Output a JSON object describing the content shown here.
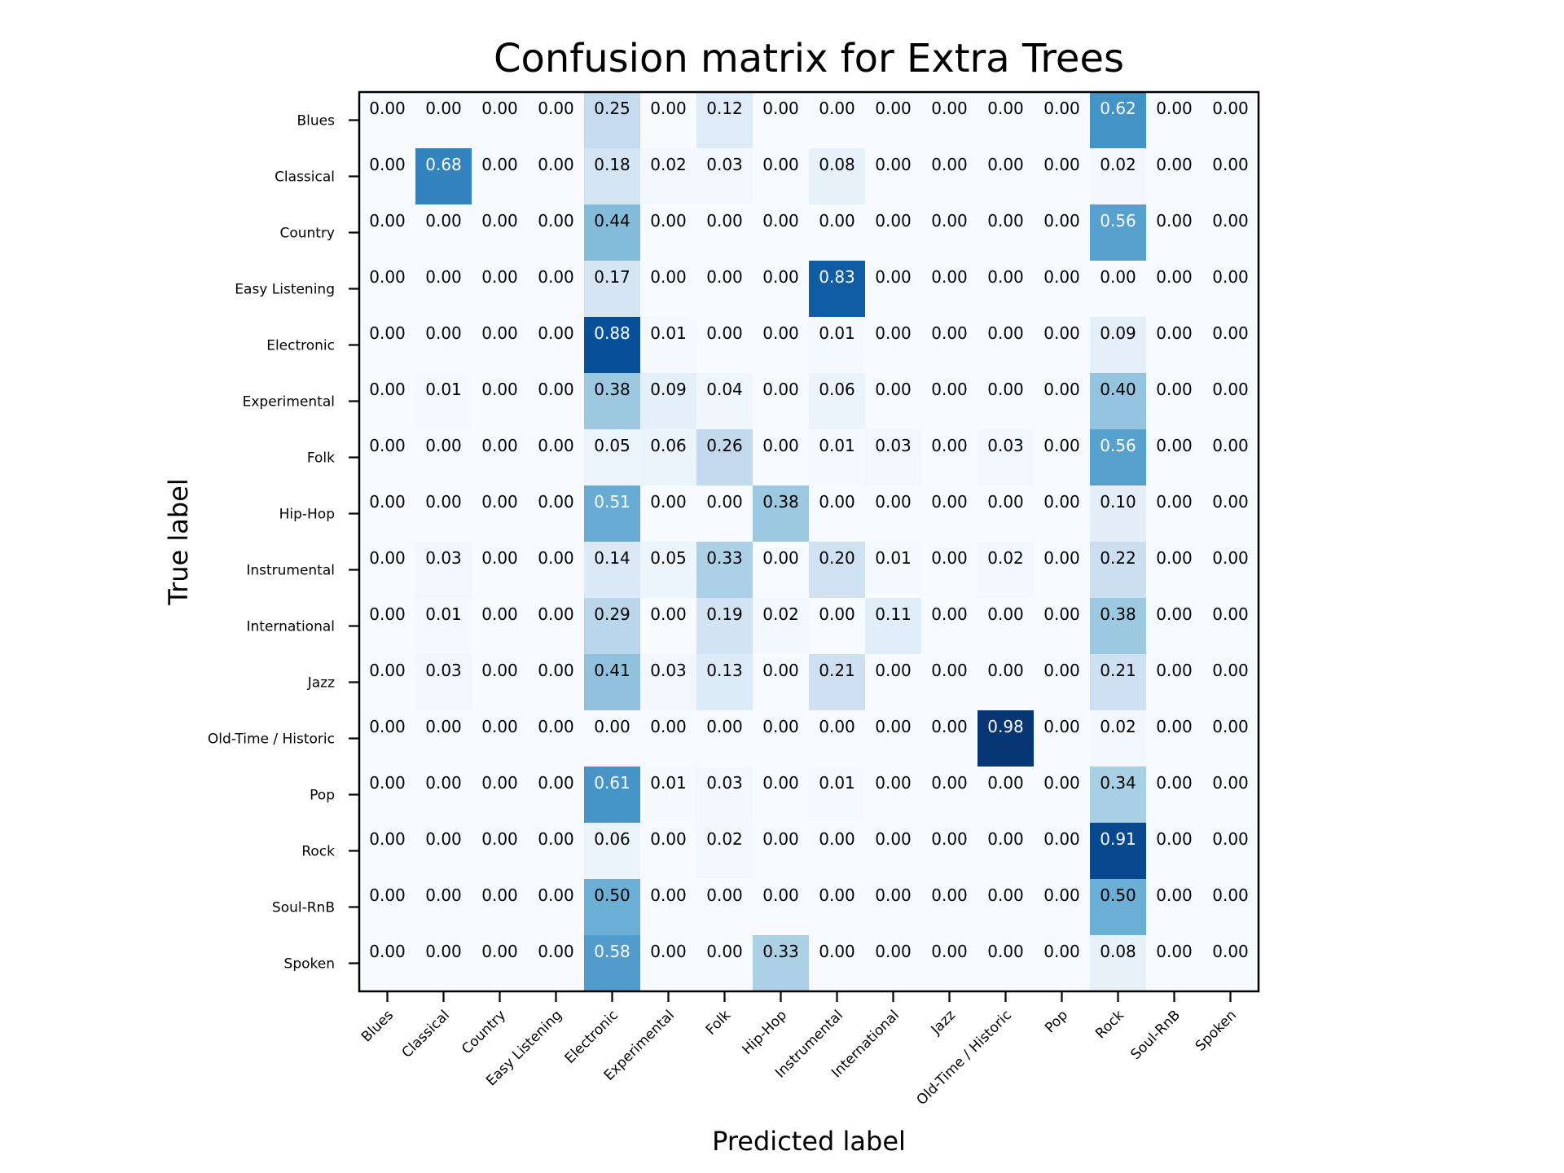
{
  "chart_data": {
    "type": "heatmap",
    "title": "Confusion matrix for Extra Trees",
    "xlabel": "Predicted label",
    "ylabel": "True label",
    "colormap": "Blues",
    "vmin": 0,
    "vmax": 1,
    "grid": false,
    "legend": "none",
    "x_categories": [
      "Blues",
      "Classical",
      "Country",
      "Easy Listening",
      "Electronic",
      "Experimental",
      "Folk",
      "Hip-Hop",
      "Instrumental",
      "International",
      "Jazz",
      "Old-Time / Historic",
      "Pop",
      "Rock",
      "Soul-RnB",
      "Spoken"
    ],
    "y_categories": [
      "Blues",
      "Classical",
      "Country",
      "Easy Listening",
      "Electronic",
      "Experimental",
      "Folk",
      "Hip-Hop",
      "Instrumental",
      "International",
      "Jazz",
      "Old-Time / Historic",
      "Pop",
      "Rock",
      "Soul-RnB",
      "Spoken"
    ],
    "values": [
      [
        0.0,
        0.0,
        0.0,
        0.0,
        0.25,
        0.0,
        0.12,
        0.0,
        0.0,
        0.0,
        0.0,
        0.0,
        0.0,
        0.62,
        0.0,
        0.0
      ],
      [
        0.0,
        0.68,
        0.0,
        0.0,
        0.18,
        0.02,
        0.03,
        0.0,
        0.08,
        0.0,
        0.0,
        0.0,
        0.0,
        0.02,
        0.0,
        0.0
      ],
      [
        0.0,
        0.0,
        0.0,
        0.0,
        0.44,
        0.0,
        0.0,
        0.0,
        0.0,
        0.0,
        0.0,
        0.0,
        0.0,
        0.56,
        0.0,
        0.0
      ],
      [
        0.0,
        0.0,
        0.0,
        0.0,
        0.17,
        0.0,
        0.0,
        0.0,
        0.83,
        0.0,
        0.0,
        0.0,
        0.0,
        0.0,
        0.0,
        0.0
      ],
      [
        0.0,
        0.0,
        0.0,
        0.0,
        0.88,
        0.01,
        0.0,
        0.0,
        0.01,
        0.0,
        0.0,
        0.0,
        0.0,
        0.09,
        0.0,
        0.0
      ],
      [
        0.0,
        0.01,
        0.0,
        0.0,
        0.38,
        0.09,
        0.04,
        0.0,
        0.06,
        0.0,
        0.0,
        0.0,
        0.0,
        0.4,
        0.0,
        0.0
      ],
      [
        0.0,
        0.0,
        0.0,
        0.0,
        0.05,
        0.06,
        0.26,
        0.0,
        0.01,
        0.03,
        0.0,
        0.03,
        0.0,
        0.56,
        0.0,
        0.0
      ],
      [
        0.0,
        0.0,
        0.0,
        0.0,
        0.51,
        0.0,
        0.0,
        0.38,
        0.0,
        0.0,
        0.0,
        0.0,
        0.0,
        0.1,
        0.0,
        0.0
      ],
      [
        0.0,
        0.03,
        0.0,
        0.0,
        0.14,
        0.05,
        0.33,
        0.0,
        0.2,
        0.01,
        0.0,
        0.02,
        0.0,
        0.22,
        0.0,
        0.0
      ],
      [
        0.0,
        0.01,
        0.0,
        0.0,
        0.29,
        0.0,
        0.19,
        0.02,
        0.0,
        0.11,
        0.0,
        0.0,
        0.0,
        0.38,
        0.0,
        0.0
      ],
      [
        0.0,
        0.03,
        0.0,
        0.0,
        0.41,
        0.03,
        0.13,
        0.0,
        0.21,
        0.0,
        0.0,
        0.0,
        0.0,
        0.21,
        0.0,
        0.0
      ],
      [
        0.0,
        0.0,
        0.0,
        0.0,
        0.0,
        0.0,
        0.0,
        0.0,
        0.0,
        0.0,
        0.0,
        0.98,
        0.0,
        0.02,
        0.0,
        0.0
      ],
      [
        0.0,
        0.0,
        0.0,
        0.0,
        0.61,
        0.01,
        0.03,
        0.0,
        0.01,
        0.0,
        0.0,
        0.0,
        0.0,
        0.34,
        0.0,
        0.0
      ],
      [
        0.0,
        0.0,
        0.0,
        0.0,
        0.06,
        0.0,
        0.02,
        0.0,
        0.0,
        0.0,
        0.0,
        0.0,
        0.0,
        0.91,
        0.0,
        0.0
      ],
      [
        0.0,
        0.0,
        0.0,
        0.0,
        0.5,
        0.0,
        0.0,
        0.0,
        0.0,
        0.0,
        0.0,
        0.0,
        0.0,
        0.5,
        0.0,
        0.0
      ],
      [
        0.0,
        0.0,
        0.0,
        0.0,
        0.58,
        0.0,
        0.0,
        0.33,
        0.0,
        0.0,
        0.0,
        0.0,
        0.0,
        0.08,
        0.0,
        0.0
      ]
    ]
  }
}
